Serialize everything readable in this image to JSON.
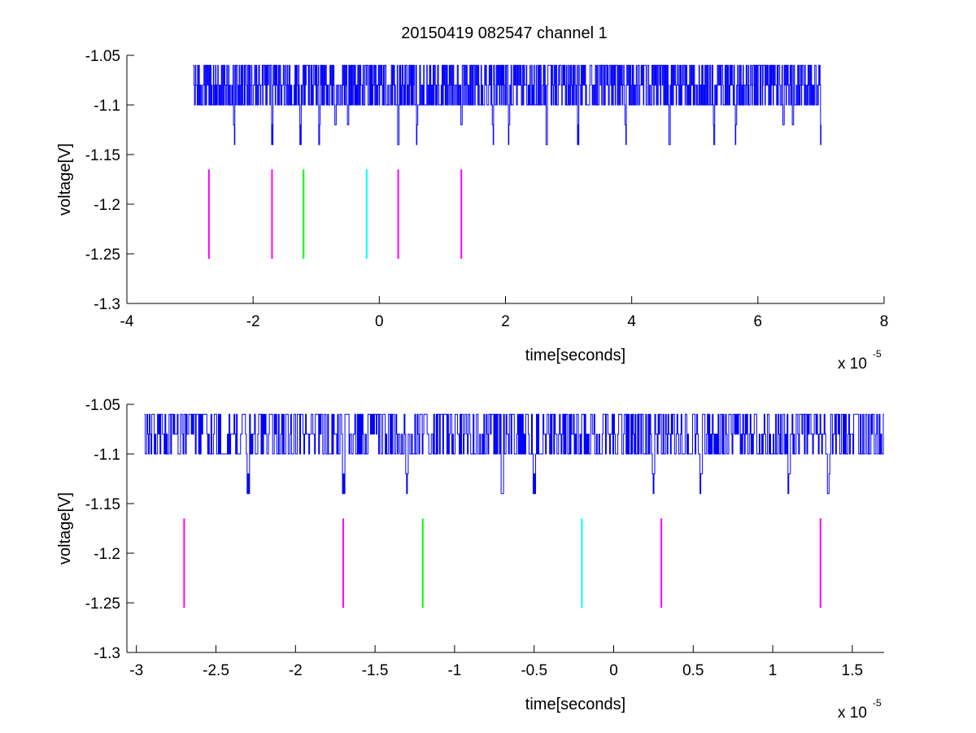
{
  "figure": {
    "title": "20150419 082547 channel 1"
  },
  "chart_data": [
    {
      "type": "line",
      "title": "20150419 082547 channel 1",
      "xlabel": "time[seconds]",
      "ylabel": "voltage[V]",
      "x_multiplier_label": "x 10",
      "x_multiplier_exp": "-5",
      "x_scale": 1e-05,
      "xlim": [
        -4,
        8
      ],
      "ylim": [
        -1.3,
        -1.05
      ],
      "xticks": [
        -4,
        -2,
        0,
        2,
        4,
        6,
        8
      ],
      "xtick_labels": [
        "-4",
        "-2",
        "0",
        "2",
        "4",
        "6",
        "8"
      ],
      "yticks": [
        -1.3,
        -1.25,
        -1.2,
        -1.15,
        -1.1,
        -1.05
      ],
      "ytick_labels": [
        "-1.3",
        "-1.25",
        "-1.2",
        "-1.15",
        "-1.1",
        "-1.05"
      ],
      "grid": false,
      "series": [
        {
          "kind": "step-signal",
          "color": "#0000ff",
          "x_range": [
            -2.95,
            7.0
          ],
          "levels": [
            -1.06,
            -1.08,
            -1.1,
            -1.12,
            -1.14
          ],
          "baseline": -1.1,
          "dips": [
            -2.3,
            -1.7,
            -1.25,
            -0.95,
            -0.7,
            -0.5,
            0.3,
            0.6,
            1.3,
            1.8,
            2.05,
            2.65,
            3.15,
            3.9,
            4.6,
            5.3,
            5.65,
            6.4,
            6.55,
            7.0
          ]
        }
      ],
      "markers": [
        {
          "x": -2.7,
          "y0": -1.255,
          "y1": -1.165,
          "color": "#ff00ff"
        },
        {
          "x": -1.7,
          "y0": -1.255,
          "y1": -1.165,
          "color": "#ff00ff"
        },
        {
          "x": -1.2,
          "y0": -1.255,
          "y1": -1.165,
          "color": "#00ff00"
        },
        {
          "x": -0.2,
          "y0": -1.255,
          "y1": -1.165,
          "color": "#00ffff"
        },
        {
          "x": 0.3,
          "y0": -1.255,
          "y1": -1.165,
          "color": "#ff00ff"
        },
        {
          "x": 1.3,
          "y0": -1.255,
          "y1": -1.165,
          "color": "#ff00ff"
        }
      ]
    },
    {
      "type": "line",
      "title": "",
      "xlabel": "time[seconds]",
      "ylabel": "voltage[V]",
      "x_multiplier_label": "x 10",
      "x_multiplier_exp": "-5",
      "x_scale": 1e-05,
      "xlim": [
        -3.06,
        1.7
      ],
      "ylim": [
        -1.3,
        -1.05
      ],
      "xticks": [
        -3,
        -2.5,
        -2,
        -1.5,
        -1,
        -0.5,
        0,
        0.5,
        1,
        1.5
      ],
      "xtick_labels": [
        "-3",
        "-2.5",
        "-2",
        "-1.5",
        "-1",
        "-0.5",
        "0",
        "0.5",
        "1",
        "1.5"
      ],
      "yticks": [
        -1.3,
        -1.25,
        -1.2,
        -1.15,
        -1.1,
        -1.05
      ],
      "ytick_labels": [
        "-1.3",
        "-1.25",
        "-1.2",
        "-1.15",
        "-1.1",
        "-1.05"
      ],
      "grid": false,
      "series": [
        {
          "kind": "step-signal",
          "color": "#0000ff",
          "x_range": [
            -2.95,
            1.7
          ],
          "levels": [
            -1.06,
            -1.08,
            -1.1,
            -1.12,
            -1.14
          ],
          "baseline": -1.1,
          "dips": [
            -2.3,
            -1.7,
            -1.3,
            -0.7,
            -0.5,
            0.25,
            0.55,
            1.1,
            1.35
          ]
        }
      ],
      "markers": [
        {
          "x": -2.7,
          "y0": -1.255,
          "y1": -1.165,
          "color": "#ff00ff"
        },
        {
          "x": -1.7,
          "y0": -1.255,
          "y1": -1.165,
          "color": "#ff00ff"
        },
        {
          "x": -1.2,
          "y0": -1.255,
          "y1": -1.165,
          "color": "#00ff00"
        },
        {
          "x": -0.2,
          "y0": -1.255,
          "y1": -1.165,
          "color": "#00ffff"
        },
        {
          "x": 0.3,
          "y0": -1.255,
          "y1": -1.165,
          "color": "#ff00ff"
        },
        {
          "x": 1.3,
          "y0": -1.255,
          "y1": -1.165,
          "color": "#ff00ff"
        }
      ]
    }
  ]
}
